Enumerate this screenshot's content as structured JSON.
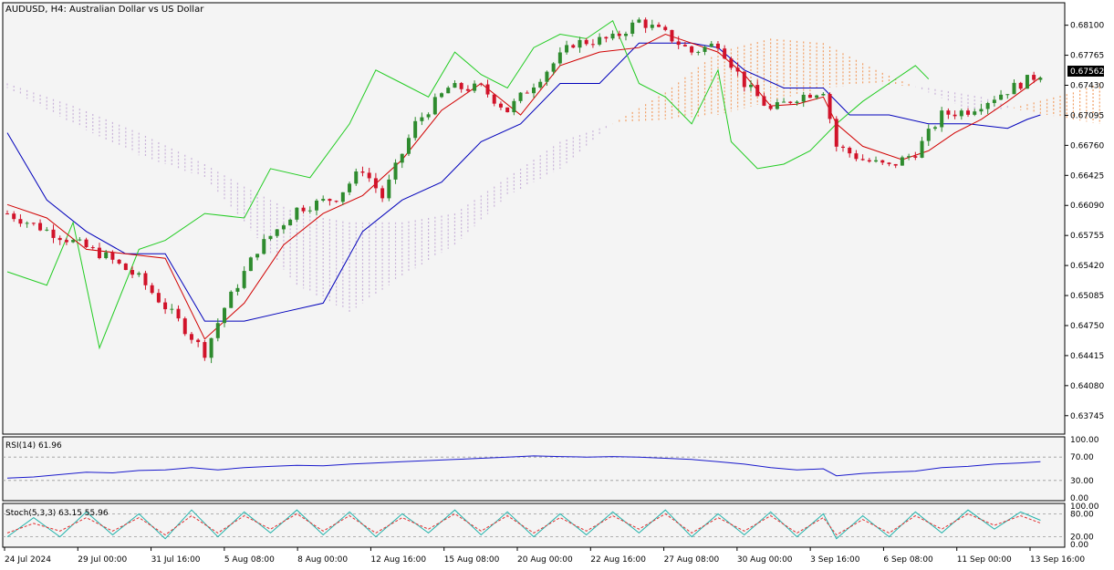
{
  "chart_title": "AUDUSD, H4:  Australian Dollar vs US Dollar",
  "price_badge": "0.67562",
  "rsi_label": "RSI(14) 61.96",
  "stoch_label": "Stoch(5,3,3) 63.15 55.96",
  "colors": {
    "background": "#f4f4f4",
    "bull": "#2e8b2e",
    "bear": "#d1132a",
    "tenkan": "#d10000",
    "kijun": "#0000bb",
    "chikou": "#22cc22",
    "kumo_bull": "#f2a066",
    "kumo_bear": "#c9b3d9",
    "rsi": "#1a1acc",
    "stoch_main": "#20b2aa",
    "stoch_signal": "#e03030"
  },
  "chart_data": [
    {
      "type": "candlestick",
      "title": "AUDUSD, H4:  Australian Dollar vs US Dollar",
      "ylim": [
        0.6358,
        0.6831
      ],
      "y_ticks": [
        "0.68100",
        "0.67765",
        "0.67430",
        "0.67095",
        "0.66760",
        "0.66425",
        "0.66090",
        "0.65755",
        "0.65420",
        "0.65085",
        "0.64750",
        "0.64415",
        "0.64080",
        "0.63745"
      ],
      "x_ticks": [
        "24 Jul 2024",
        "29 Jul 00:00",
        "31 Jul 16:00",
        "5 Aug 08:00",
        "8 Aug 00:00",
        "12 Aug 16:00",
        "15 Aug 08:00",
        "20 Aug 00:00",
        "22 Aug 16:00",
        "27 Aug 08:00",
        "30 Aug 00:00",
        "3 Sep 16:00",
        "6 Sep 08:00",
        "11 Sep 00:00",
        "13 Sep 16:00"
      ],
      "close_path": [
        [
          0,
          0.66
        ],
        [
          8,
          0.6575
        ],
        [
          15,
          0.6552
        ],
        [
          20,
          0.6528
        ],
        [
          26,
          0.648
        ],
        [
          30,
          0.6445
        ],
        [
          33,
          0.6495
        ],
        [
          38,
          0.656
        ],
        [
          44,
          0.6605
        ],
        [
          50,
          0.6618
        ],
        [
          54,
          0.665
        ],
        [
          57,
          0.6618
        ],
        [
          62,
          0.67
        ],
        [
          67,
          0.674
        ],
        [
          72,
          0.674
        ],
        [
          76,
          0.6715
        ],
        [
          82,
          0.676
        ],
        [
          86,
          0.679
        ],
        [
          92,
          0.6795
        ],
        [
          96,
          0.6815
        ],
        [
          100,
          0.68
        ],
        [
          104,
          0.678
        ],
        [
          108,
          0.679
        ],
        [
          112,
          0.6745
        ],
        [
          116,
          0.6715
        ],
        [
          120,
          0.673
        ],
        [
          124,
          0.6738
        ],
        [
          126,
          0.6675
        ],
        [
          130,
          0.666
        ],
        [
          134,
          0.6652
        ],
        [
          138,
          0.6668
        ],
        [
          142,
          0.671
        ],
        [
          146,
          0.6715
        ],
        [
          150,
          0.673
        ],
        [
          154,
          0.6745
        ],
        [
          157,
          0.6756
        ]
      ],
      "tenkan_path": [
        [
          0,
          0.661
        ],
        [
          6,
          0.6595
        ],
        [
          12,
          0.656
        ],
        [
          18,
          0.6555
        ],
        [
          24,
          0.655
        ],
        [
          30,
          0.646
        ],
        [
          36,
          0.65
        ],
        [
          42,
          0.6565
        ],
        [
          48,
          0.66
        ],
        [
          54,
          0.662
        ],
        [
          60,
          0.666
        ],
        [
          66,
          0.6715
        ],
        [
          72,
          0.6745
        ],
        [
          78,
          0.671
        ],
        [
          84,
          0.6765
        ],
        [
          90,
          0.678
        ],
        [
          96,
          0.6785
        ],
        [
          100,
          0.68
        ],
        [
          104,
          0.679
        ],
        [
          108,
          0.678
        ],
        [
          112,
          0.6755
        ],
        [
          116,
          0.672
        ],
        [
          120,
          0.6722
        ],
        [
          124,
          0.673
        ],
        [
          126,
          0.67
        ],
        [
          130,
          0.6675
        ],
        [
          136,
          0.666
        ],
        [
          140,
          0.667
        ],
        [
          144,
          0.669
        ],
        [
          148,
          0.6705
        ],
        [
          152,
          0.6725
        ],
        [
          157,
          0.6752
        ]
      ],
      "kijun_path": [
        [
          0,
          0.669
        ],
        [
          6,
          0.6615
        ],
        [
          12,
          0.658
        ],
        [
          18,
          0.6555
        ],
        [
          24,
          0.6555
        ],
        [
          30,
          0.648
        ],
        [
          36,
          0.648
        ],
        [
          42,
          0.649
        ],
        [
          48,
          0.65
        ],
        [
          54,
          0.658
        ],
        [
          60,
          0.6615
        ],
        [
          66,
          0.6635
        ],
        [
          72,
          0.668
        ],
        [
          78,
          0.67
        ],
        [
          84,
          0.6745
        ],
        [
          90,
          0.6745
        ],
        [
          96,
          0.679
        ],
        [
          100,
          0.679
        ],
        [
          104,
          0.679
        ],
        [
          108,
          0.6785
        ],
        [
          112,
          0.676
        ],
        [
          118,
          0.674
        ],
        [
          124,
          0.674
        ],
        [
          128,
          0.671
        ],
        [
          134,
          0.671
        ],
        [
          140,
          0.67
        ],
        [
          146,
          0.67
        ],
        [
          152,
          0.6695
        ],
        [
          155,
          0.6705
        ],
        [
          157,
          0.671
        ]
      ],
      "chikou_path": [
        [
          0,
          0.6535
        ],
        [
          6,
          0.652
        ],
        [
          10,
          0.659
        ],
        [
          14,
          0.645
        ],
        [
          20,
          0.656
        ],
        [
          24,
          0.657
        ],
        [
          30,
          0.66
        ],
        [
          36,
          0.6595
        ],
        [
          40,
          0.665
        ],
        [
          46,
          0.664
        ],
        [
          52,
          0.67
        ],
        [
          56,
          0.676
        ],
        [
          60,
          0.6745
        ],
        [
          64,
          0.673
        ],
        [
          68,
          0.678
        ],
        [
          72,
          0.6755
        ],
        [
          76,
          0.674
        ],
        [
          80,
          0.6785
        ],
        [
          84,
          0.68
        ],
        [
          88,
          0.6795
        ],
        [
          92,
          0.6815
        ],
        [
          96,
          0.6745
        ],
        [
          100,
          0.673
        ],
        [
          104,
          0.67
        ],
        [
          108,
          0.676
        ],
        [
          110,
          0.668
        ],
        [
          114,
          0.665
        ],
        [
          118,
          0.6655
        ],
        [
          122,
          0.667
        ],
        [
          126,
          0.67
        ],
        [
          130,
          0.6725
        ],
        [
          134,
          0.6745
        ],
        [
          138,
          0.6765
        ],
        [
          140,
          0.675
        ]
      ],
      "kumo_span_a": [
        [
          0,
          0.674
        ],
        [
          10,
          0.67
        ],
        [
          20,
          0.6665
        ],
        [
          30,
          0.664
        ],
        [
          36,
          0.659
        ],
        [
          44,
          0.652
        ],
        [
          52,
          0.649
        ],
        [
          60,
          0.653
        ],
        [
          68,
          0.6565
        ],
        [
          76,
          0.662
        ],
        [
          84,
          0.665
        ],
        [
          92,
          0.67
        ],
        [
          100,
          0.6735
        ],
        [
          108,
          0.678
        ],
        [
          116,
          0.6795
        ],
        [
          124,
          0.679
        ],
        [
          132,
          0.676
        ],
        [
          140,
          0.6735
        ],
        [
          148,
          0.671
        ],
        [
          154,
          0.672
        ],
        [
          162,
          0.6735
        ],
        [
          166,
          0.6745
        ]
      ],
      "kumo_span_b": [
        [
          0,
          0.6745
        ],
        [
          10,
          0.672
        ],
        [
          20,
          0.669
        ],
        [
          30,
          0.6655
        ],
        [
          36,
          0.663
        ],
        [
          44,
          0.66
        ],
        [
          52,
          0.659
        ],
        [
          60,
          0.659
        ],
        [
          68,
          0.66
        ],
        [
          76,
          0.664
        ],
        [
          84,
          0.668
        ],
        [
          92,
          0.67
        ],
        [
          100,
          0.6705
        ],
        [
          108,
          0.671
        ],
        [
          116,
          0.6725
        ],
        [
          124,
          0.674
        ],
        [
          132,
          0.6745
        ],
        [
          140,
          0.674
        ],
        [
          148,
          0.673
        ],
        [
          154,
          0.6715
        ],
        [
          162,
          0.6705
        ],
        [
          166,
          0.67
        ]
      ],
      "series": [
        {
          "name": "Tenkan-sen"
        },
        {
          "name": "Kijun-sen"
        },
        {
          "name": "Chikou Span"
        }
      ]
    },
    {
      "type": "line",
      "label": "RSI(14) 61.96",
      "ylim": [
        0,
        100
      ],
      "y_ticks": [
        "100.00",
        "70.00",
        "30.00",
        "0.00"
      ],
      "levels": [
        70,
        30
      ],
      "points": [
        [
          0,
          34
        ],
        [
          4,
          36
        ],
        [
          8,
          40
        ],
        [
          12,
          44
        ],
        [
          16,
          43
        ],
        [
          20,
          47
        ],
        [
          24,
          48
        ],
        [
          28,
          52
        ],
        [
          32,
          48
        ],
        [
          36,
          52
        ],
        [
          40,
          54
        ],
        [
          44,
          56
        ],
        [
          48,
          55
        ],
        [
          52,
          58
        ],
        [
          56,
          60
        ],
        [
          60,
          62
        ],
        [
          64,
          64
        ],
        [
          68,
          66
        ],
        [
          72,
          68
        ],
        [
          76,
          70
        ],
        [
          80,
          72
        ],
        [
          84,
          71
        ],
        [
          88,
          70
        ],
        [
          92,
          71
        ],
        [
          96,
          70
        ],
        [
          100,
          68
        ],
        [
          104,
          66
        ],
        [
          108,
          62
        ],
        [
          112,
          58
        ],
        [
          116,
          52
        ],
        [
          120,
          48
        ],
        [
          124,
          50
        ],
        [
          126,
          38
        ],
        [
          130,
          42
        ],
        [
          134,
          44
        ],
        [
          138,
          46
        ],
        [
          142,
          52
        ],
        [
          146,
          54
        ],
        [
          150,
          58
        ],
        [
          154,
          60
        ],
        [
          157,
          62
        ]
      ]
    },
    {
      "type": "line",
      "label": "Stoch(5,3,3) 63.15 55.96",
      "ylim": [
        0,
        100
      ],
      "y_ticks": [
        "100.00",
        "80.00",
        "20.00",
        "0.00"
      ],
      "levels": [
        80,
        20
      ],
      "main": [
        [
          0,
          20
        ],
        [
          4,
          70
        ],
        [
          8,
          20
        ],
        [
          12,
          85
        ],
        [
          16,
          25
        ],
        [
          20,
          80
        ],
        [
          24,
          15
        ],
        [
          28,
          90
        ],
        [
          32,
          20
        ],
        [
          36,
          85
        ],
        [
          40,
          30
        ],
        [
          44,
          90
        ],
        [
          48,
          25
        ],
        [
          52,
          85
        ],
        [
          56,
          20
        ],
        [
          60,
          80
        ],
        [
          64,
          30
        ],
        [
          68,
          90
        ],
        [
          72,
          25
        ],
        [
          76,
          85
        ],
        [
          80,
          20
        ],
        [
          84,
          80
        ],
        [
          88,
          25
        ],
        [
          92,
          85
        ],
        [
          96,
          30
        ],
        [
          100,
          90
        ],
        [
          104,
          20
        ],
        [
          108,
          80
        ],
        [
          112,
          25
        ],
        [
          116,
          85
        ],
        [
          120,
          20
        ],
        [
          124,
          80
        ],
        [
          126,
          15
        ],
        [
          130,
          75
        ],
        [
          134,
          20
        ],
        [
          138,
          85
        ],
        [
          142,
          30
        ],
        [
          146,
          90
        ],
        [
          150,
          40
        ],
        [
          154,
          85
        ],
        [
          157,
          63
        ]
      ],
      "signal": [
        [
          0,
          30
        ],
        [
          4,
          55
        ],
        [
          8,
          35
        ],
        [
          12,
          70
        ],
        [
          16,
          35
        ],
        [
          20,
          70
        ],
        [
          24,
          25
        ],
        [
          28,
          75
        ],
        [
          32,
          30
        ],
        [
          36,
          75
        ],
        [
          40,
          40
        ],
        [
          44,
          80
        ],
        [
          48,
          35
        ],
        [
          52,
          75
        ],
        [
          56,
          30
        ],
        [
          60,
          70
        ],
        [
          64,
          40
        ],
        [
          68,
          80
        ],
        [
          72,
          35
        ],
        [
          76,
          75
        ],
        [
          80,
          30
        ],
        [
          84,
          70
        ],
        [
          88,
          35
        ],
        [
          92,
          75
        ],
        [
          96,
          40
        ],
        [
          100,
          80
        ],
        [
          104,
          30
        ],
        [
          108,
          70
        ],
        [
          112,
          35
        ],
        [
          116,
          75
        ],
        [
          120,
          30
        ],
        [
          124,
          70
        ],
        [
          126,
          25
        ],
        [
          130,
          65
        ],
        [
          134,
          30
        ],
        [
          138,
          75
        ],
        [
          142,
          40
        ],
        [
          146,
          80
        ],
        [
          150,
          50
        ],
        [
          154,
          75
        ],
        [
          157,
          56
        ]
      ]
    }
  ]
}
